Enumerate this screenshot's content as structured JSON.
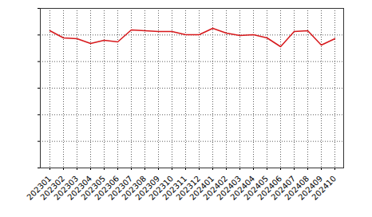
{
  "chart_data": {
    "type": "line",
    "categories": [
      "202301",
      "202302",
      "202303",
      "202304",
      "202305",
      "202306",
      "202307",
      "202308",
      "202309",
      "202310",
      "202311",
      "202312",
      "202401",
      "202402",
      "202403",
      "202404",
      "202405",
      "202406",
      "202407",
      "202408",
      "202409",
      "202410"
    ],
    "values": [
      5.16,
      4.89,
      4.86,
      4.68,
      4.8,
      4.74,
      5.19,
      5.16,
      5.13,
      5.13,
      5.01,
      5.01,
      5.25,
      5.07,
      4.98,
      5.01,
      4.89,
      4.56,
      5.13,
      5.16,
      4.62,
      4.86
    ],
    "color": "#d7191c",
    "ylim": [
      0,
      6
    ],
    "yticks": [
      0,
      1,
      2,
      3,
      4,
      5,
      6
    ],
    "grid": true,
    "tick_labels": "x"
  }
}
